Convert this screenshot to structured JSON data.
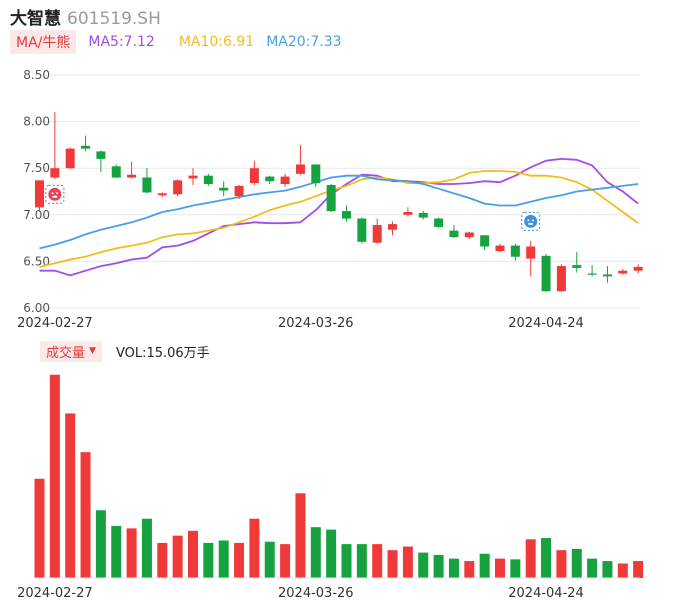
{
  "header": {
    "name": "大智慧",
    "code": "601519.SH"
  },
  "legend": {
    "ma_tag": "MA/牛熊",
    "ma5": "MA5:7.12",
    "ma10": "MA10:6.91",
    "ma20": "MA20:7.33"
  },
  "volume_legend": {
    "tag": "成交量",
    "value": "VOL:15.06万手"
  },
  "colors": {
    "up": "#f03a3a",
    "down": "#16a23e",
    "ma5": "#a24de8",
    "ma10": "#f2bd1c",
    "ma20": "#4a9ee6",
    "grid": "#e8e8e8",
    "axis_text": "#555555"
  },
  "icons": {
    "bull_marker": "bull-icon",
    "bear_marker": "bear-icon"
  },
  "chart_data": [
    {
      "type": "candlestick",
      "title": "",
      "y_ticks": [
        "8.50",
        "8.00",
        "7.50",
        "7.00",
        "6.50",
        "6.00"
      ],
      "ylim": [
        6.0,
        8.5
      ],
      "x_ticks": [
        {
          "label": "2024-02-27",
          "index": 1
        },
        {
          "label": "2024-03-26",
          "index": 18
        },
        {
          "label": "2024-04-24",
          "index": 33
        }
      ],
      "grid": true,
      "candles": [
        {
          "o": 7.08,
          "c": 7.37,
          "h": 7.37,
          "l": 7.03
        },
        {
          "o": 7.4,
          "c": 7.5,
          "h": 8.1,
          "l": 7.38
        },
        {
          "o": 7.5,
          "c": 7.71,
          "h": 7.72,
          "l": 7.49
        },
        {
          "o": 7.74,
          "c": 7.71,
          "h": 7.85,
          "l": 7.68
        },
        {
          "o": 7.68,
          "c": 7.6,
          "h": 7.69,
          "l": 7.46
        },
        {
          "o": 7.52,
          "c": 7.4,
          "h": 7.54,
          "l": 7.39
        },
        {
          "o": 7.4,
          "c": 7.43,
          "h": 7.57,
          "l": 7.39
        },
        {
          "o": 7.4,
          "c": 7.24,
          "h": 7.5,
          "l": 7.23
        },
        {
          "o": 7.21,
          "c": 7.23,
          "h": 7.24,
          "l": 7.19
        },
        {
          "o": 7.22,
          "c": 7.37,
          "h": 7.38,
          "l": 7.2
        },
        {
          "o": 7.39,
          "c": 7.42,
          "h": 7.5,
          "l": 7.32
        },
        {
          "o": 7.42,
          "c": 7.33,
          "h": 7.44,
          "l": 7.31
        },
        {
          "o": 7.29,
          "c": 7.26,
          "h": 7.36,
          "l": 7.2
        },
        {
          "o": 7.2,
          "c": 7.31,
          "h": 7.32,
          "l": 7.17
        },
        {
          "o": 7.34,
          "c": 7.5,
          "h": 7.58,
          "l": 7.32
        },
        {
          "o": 7.41,
          "c": 7.36,
          "h": 7.42,
          "l": 7.33
        },
        {
          "o": 7.33,
          "c": 7.41,
          "h": 7.44,
          "l": 7.3
        },
        {
          "o": 7.44,
          "c": 7.54,
          "h": 7.75,
          "l": 7.43
        },
        {
          "o": 7.54,
          "c": 7.34,
          "h": 7.54,
          "l": 7.3
        },
        {
          "o": 7.32,
          "c": 7.04,
          "h": 7.33,
          "l": 7.03
        },
        {
          "o": 7.04,
          "c": 6.96,
          "h": 7.1,
          "l": 6.93
        },
        {
          "o": 6.96,
          "c": 6.71,
          "h": 6.97,
          "l": 6.69
        },
        {
          "o": 6.7,
          "c": 6.89,
          "h": 6.96,
          "l": 6.69
        },
        {
          "o": 6.84,
          "c": 6.9,
          "h": 6.93,
          "l": 6.78
        },
        {
          "o": 7.0,
          "c": 7.03,
          "h": 7.08,
          "l": 6.98
        },
        {
          "o": 7.02,
          "c": 6.97,
          "h": 7.04,
          "l": 6.95
        },
        {
          "o": 6.96,
          "c": 6.87,
          "h": 6.97,
          "l": 6.86
        },
        {
          "o": 6.83,
          "c": 6.76,
          "h": 6.89,
          "l": 6.75
        },
        {
          "o": 6.76,
          "c": 6.81,
          "h": 6.82,
          "l": 6.74
        },
        {
          "o": 6.78,
          "c": 6.66,
          "h": 6.78,
          "l": 6.62
        },
        {
          "o": 6.61,
          "c": 6.67,
          "h": 6.69,
          "l": 6.6
        },
        {
          "o": 6.67,
          "c": 6.55,
          "h": 6.69,
          "l": 6.51
        },
        {
          "o": 6.53,
          "c": 6.66,
          "h": 6.72,
          "l": 6.34
        },
        {
          "o": 6.56,
          "c": 6.18,
          "h": 6.58,
          "l": 6.17
        },
        {
          "o": 6.18,
          "c": 6.45,
          "h": 6.47,
          "l": 6.17
        },
        {
          "o": 6.46,
          "c": 6.43,
          "h": 6.6,
          "l": 6.38
        },
        {
          "o": 6.37,
          "c": 6.36,
          "h": 6.46,
          "l": 6.34
        },
        {
          "o": 6.36,
          "c": 6.34,
          "h": 6.45,
          "l": 6.27
        },
        {
          "o": 6.37,
          "c": 6.4,
          "h": 6.42,
          "l": 6.36
        },
        {
          "o": 6.4,
          "c": 6.44,
          "h": 6.47,
          "l": 6.37
        }
      ],
      "ma_series": [
        {
          "name": "MA5",
          "color": "#a24de8",
          "values": [
            6.4,
            6.4,
            6.35,
            6.4,
            6.45,
            6.48,
            6.52,
            6.54,
            6.65,
            6.67,
            6.72,
            6.8,
            6.88,
            6.9,
            6.92,
            6.91,
            6.91,
            6.92,
            7.05,
            7.22,
            7.33,
            7.43,
            7.42,
            7.36,
            7.36,
            7.35,
            7.33,
            7.33,
            7.34,
            7.36,
            7.35,
            7.42,
            7.51,
            7.58,
            7.6,
            7.59,
            7.53,
            7.35,
            7.25,
            7.12
          ]
        },
        {
          "name": "MA10",
          "color": "#f2bd1c",
          "values": [
            6.44,
            6.48,
            6.52,
            6.55,
            6.6,
            6.64,
            6.67,
            6.7,
            6.76,
            6.79,
            6.8,
            6.83,
            6.86,
            6.92,
            6.98,
            7.05,
            7.1,
            7.14,
            7.2,
            7.26,
            7.31,
            7.38,
            7.4,
            7.38,
            7.34,
            7.34,
            7.35,
            7.38,
            7.45,
            7.47,
            7.47,
            7.46,
            7.42,
            7.42,
            7.4,
            7.35,
            7.27,
            7.15,
            7.03,
            6.91
          ]
        },
        {
          "name": "MA20",
          "color": "#4a9ee6",
          "values": [
            6.64,
            6.68,
            6.73,
            6.79,
            6.84,
            6.88,
            6.92,
            6.97,
            7.03,
            7.06,
            7.1,
            7.13,
            7.16,
            7.19,
            7.22,
            7.24,
            7.26,
            7.3,
            7.35,
            7.4,
            7.42,
            7.42,
            7.38,
            7.37,
            7.36,
            7.33,
            7.28,
            7.23,
            7.18,
            7.12,
            7.1,
            7.1,
            7.14,
            7.18,
            7.21,
            7.25,
            7.27,
            7.29,
            7.31,
            7.33
          ]
        }
      ],
      "markers": [
        {
          "name": "bull-icon",
          "index": 1,
          "price": 7.22,
          "color": "#e0465a"
        },
        {
          "name": "bear-icon",
          "index": 32,
          "price": 6.93,
          "color": "#3b8fe0"
        }
      ]
    },
    {
      "type": "bar",
      "title": "",
      "series_name": "成交量",
      "x_ticks": [
        {
          "label": "2024-02-27",
          "index": 1
        },
        {
          "label": "2024-03-26",
          "index": 18
        },
        {
          "label": "2024-04-24",
          "index": 33
        }
      ],
      "values": [
        41.0,
        84.0,
        68.0,
        52.0,
        28.0,
        21.5,
        20.5,
        24.5,
        14.5,
        17.5,
        19.5,
        14.5,
        15.5,
        14.5,
        24.5,
        15.0,
        14.0,
        35.0,
        21.0,
        20.0,
        14.0,
        14.0,
        14.0,
        11.5,
        13.0,
        10.5,
        9.5,
        8.0,
        7.0,
        10.0,
        8.0,
        7.7,
        16.0,
        16.5,
        11.5,
        12.0,
        8.0,
        7.0,
        6.0,
        7.0
      ],
      "directions": [
        "up",
        "up",
        "up",
        "up",
        "down",
        "down",
        "up",
        "down",
        "up",
        "up",
        "up",
        "down",
        "down",
        "up",
        "up",
        "down",
        "up",
        "up",
        "down",
        "down",
        "down",
        "down",
        "up",
        "up",
        "up",
        "down",
        "down",
        "down",
        "up",
        "down",
        "up",
        "down",
        "up",
        "down",
        "up",
        "down",
        "down",
        "down",
        "up",
        "up"
      ]
    }
  ]
}
